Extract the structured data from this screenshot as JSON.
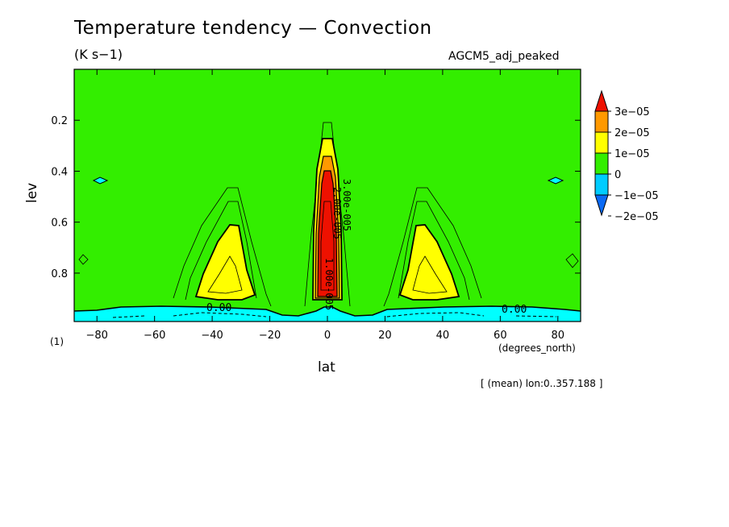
{
  "header": {
    "title": "Temperature tendency — Convection",
    "units": "(K s−1)",
    "dataset": "AGCM5_adj_peaked",
    "page_number": "(1)",
    "x_units": "(degrees_north)",
    "average_note": "[ (mean) lon:0..357.188 ]"
  },
  "chart_data": {
    "type": "heatmap",
    "title": "Temperature tendency — Convection",
    "xlabel": "lat",
    "ylabel": "lev",
    "xlim": [
      -87.9,
      87.9
    ],
    "ylim": [
      0.0,
      0.99
    ],
    "y_inverted": true,
    "x_ticks": [
      -80,
      -60,
      -40,
      -20,
      0,
      20,
      40,
      60,
      80
    ],
    "x_tick_labels": [
      "−80",
      "−60",
      "−40",
      "−20",
      "0",
      "20",
      "40",
      "60",
      "80"
    ],
    "y_ticks": [
      0.2,
      0.4,
      0.6,
      0.8
    ],
    "y_tick_labels": [
      "0.2",
      "0.4",
      "0.6",
      "0.8"
    ],
    "colorbar": {
      "levels": [
        -2e-05,
        -1e-05,
        0,
        1e-05,
        2e-05,
        3e-05
      ],
      "labels": [
        "3e−05",
        "2e−05",
        "1e−05",
        "0",
        "−1e−05",
        "−2e−05"
      ],
      "colors": [
        "#0a6af5",
        "#00ccff",
        "#33ee00",
        "#ffff00",
        "#ff9900",
        "#ee1100"
      ]
    },
    "contour_labels": [
      "0.00",
      "0.00",
      "3.00e-005",
      "1.00e-005",
      "2.00e-005"
    ],
    "regions": [
      {
        "name": "southern-subtropical-maximum",
        "lat_center": -34,
        "lev_range": [
          0.62,
          0.93
        ],
        "level": "1e-05 to 2e-05"
      },
      {
        "name": "northern-subtropical-maximum",
        "lat_center": 34,
        "lev_range": [
          0.62,
          0.93
        ],
        "level": "1e-05 to 2e-05"
      },
      {
        "name": "equatorial-maximum",
        "lat_center": 0,
        "lev_range": [
          0.29,
          0.95
        ],
        "level": "above 3e-05"
      },
      {
        "name": "boundary-layer-cooling",
        "lat_range": [
          -87.9,
          87.9
        ],
        "lev_range": [
          0.93,
          0.99
        ],
        "level": "-1e-05 to 0"
      }
    ]
  }
}
